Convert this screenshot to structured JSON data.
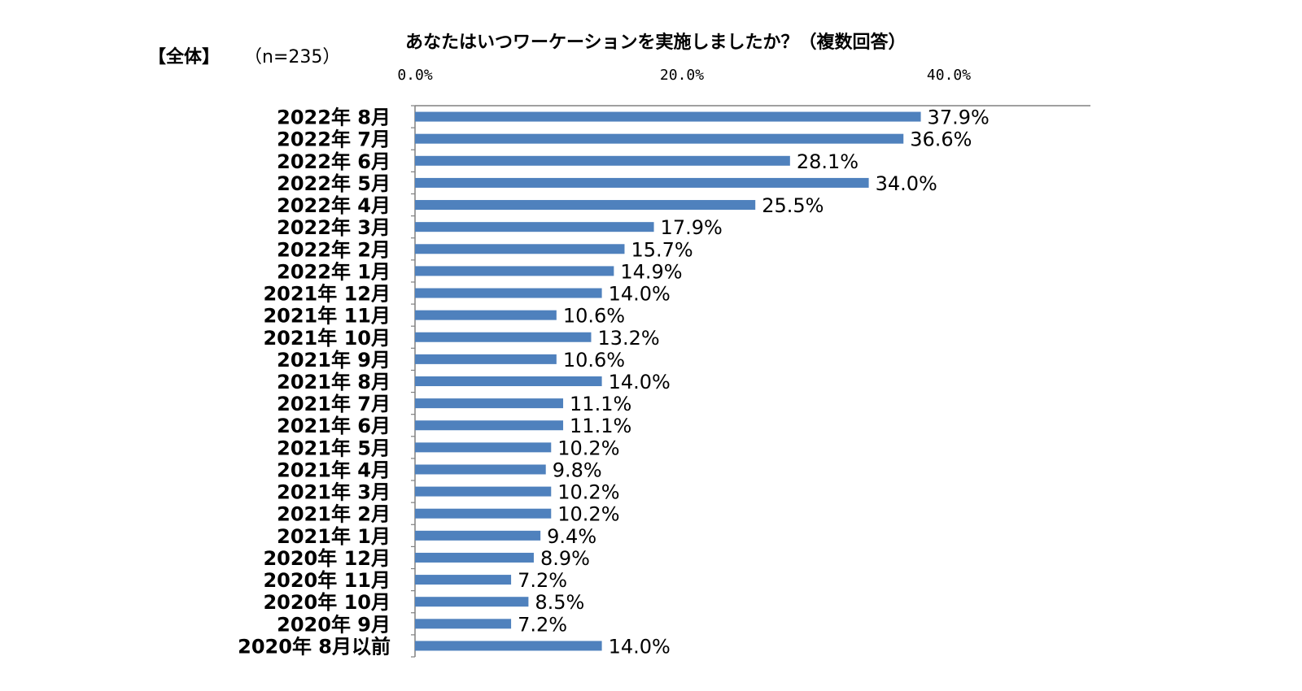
{
  "header": {
    "group": "【全体】",
    "sample": "（n=235）"
  },
  "chart_data": {
    "type": "bar",
    "orientation": "horizontal",
    "title": "あなたはいつワーケーションを実施しましたか？（複数回答）",
    "xlabel": "",
    "ylabel": "",
    "xlim": [
      0,
      50
    ],
    "x_ticks": [
      {
        "value": 0,
        "label": "0.0%"
      },
      {
        "value": 20,
        "label": "20.0%"
      },
      {
        "value": 40,
        "label": "40.0%"
      }
    ],
    "categories": [
      "2022年 8月",
      "2022年 7月",
      "2022年 6月",
      "2022年 5月",
      "2022年 4月",
      "2022年 3月",
      "2022年 2月",
      "2022年 1月",
      "2021年 12月",
      "2021年 11月",
      "2021年 10月",
      "2021年 9月",
      "2021年 8月",
      "2021年 7月",
      "2021年 6月",
      "2021年 5月",
      "2021年 4月",
      "2021年 3月",
      "2021年 2月",
      "2021年 1月",
      "2020年 12月",
      "2020年 11月",
      "2020年 10月",
      "2020年 9月",
      "2020年 8月以前"
    ],
    "values": [
      37.9,
      36.6,
      28.1,
      34.0,
      25.5,
      17.9,
      15.7,
      14.9,
      14.0,
      10.6,
      13.2,
      10.6,
      14.0,
      11.1,
      11.1,
      10.2,
      9.8,
      10.2,
      10.2,
      9.4,
      8.9,
      7.2,
      8.5,
      7.2,
      14.0
    ],
    "value_labels": [
      "37.9%",
      "36.6%",
      "28.1%",
      "34.0%",
      "25.5%",
      "17.9%",
      "15.7%",
      "14.9%",
      "14.0%",
      "10.6%",
      "13.2%",
      "10.6%",
      "14.0%",
      "11.1%",
      "11.1%",
      "10.2%",
      "9.8%",
      "10.2%",
      "10.2%",
      "9.4%",
      "8.9%",
      "7.2%",
      "8.5%",
      "7.2%",
      "14.0%"
    ],
    "bar_color": "#4f81bd",
    "grid": false
  }
}
